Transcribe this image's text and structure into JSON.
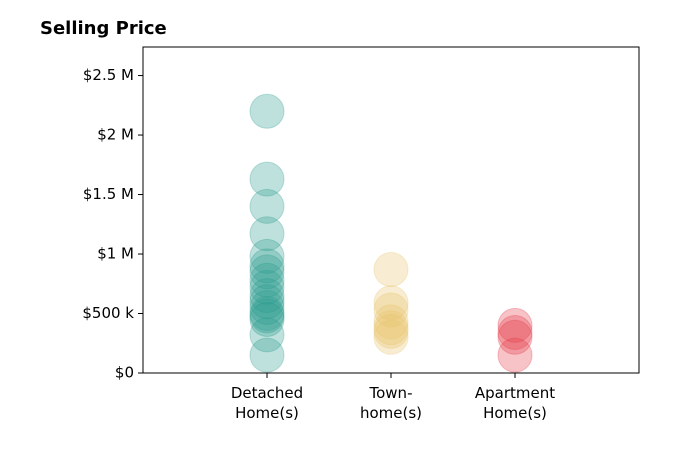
{
  "chart_data": {
    "type": "strip",
    "title": "Selling Price",
    "categories": [
      "Detached\nHome(s)",
      "Town-\nhome(s)",
      "Apartment\nHome(s)"
    ],
    "colors": [
      "#2a9d8f",
      "#e9c46a",
      "#e63946"
    ],
    "values": [
      [
        2200000,
        1630000,
        1400000,
        1170000,
        980000,
        900000,
        850000,
        780000,
        720000,
        650000,
        600000,
        550000,
        500000,
        480000,
        450000,
        320000,
        150000
      ],
      [
        870000,
        590000,
        530000,
        430000,
        380000,
        350000,
        300000
      ],
      [
        400000,
        340000,
        300000,
        150000
      ]
    ],
    "ylim": [
      0,
      2740000
    ],
    "yticks": [
      {
        "value": 0,
        "label": "$0"
      },
      {
        "value": 500000,
        "label": "$500 k"
      },
      {
        "value": 1000000,
        "label": "$1 M"
      },
      {
        "value": 1500000,
        "label": "$1.5 M"
      },
      {
        "value": 2000000,
        "label": "$2 M"
      },
      {
        "value": 2500000,
        "label": "$2.5 M"
      }
    ]
  }
}
